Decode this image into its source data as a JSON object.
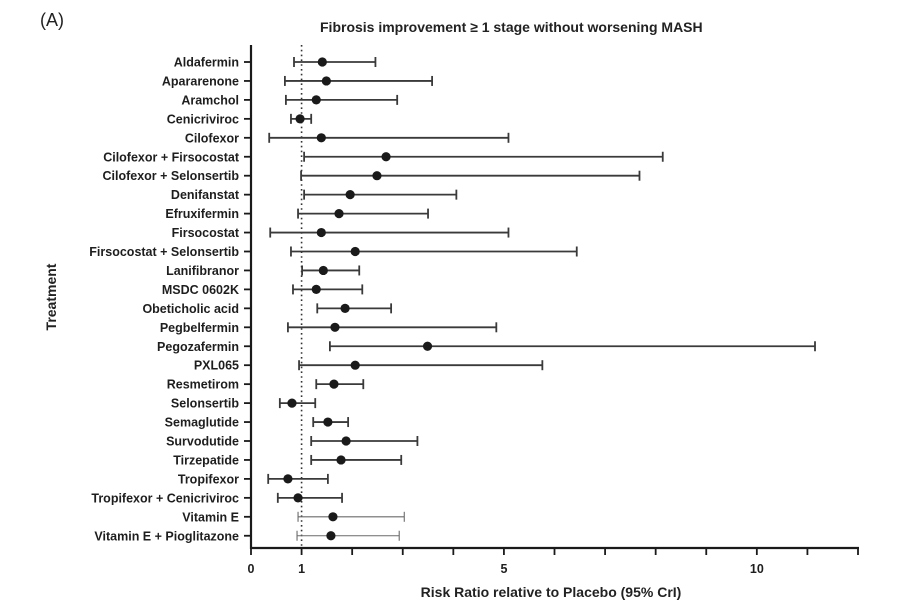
{
  "panel_label": "(A)",
  "chart_data": {
    "type": "forest",
    "title": "Fibrosis improvement ≥ 1 stage without worsening MASH",
    "xlabel": "Risk Ratio relative to Placebo (95% CrI)",
    "ylabel": "Treatment",
    "xlim": [
      0,
      12
    ],
    "xticks": [
      0,
      1,
      2,
      3,
      4,
      5,
      6,
      7,
      8,
      9,
      10,
      11,
      12
    ],
    "xtick_labels": [
      {
        "value": 0,
        "label": "0"
      },
      {
        "value": 1,
        "label": "1"
      },
      {
        "value": 5,
        "label": "5"
      },
      {
        "value": 10,
        "label": "10"
      }
    ],
    "reference_line": 1,
    "grid": false,
    "series": [
      {
        "treatment": "Aldafermin",
        "estimate": 1.41,
        "lower": 0.85,
        "upper": 2.46
      },
      {
        "treatment": "Apararenone",
        "estimate": 1.49,
        "lower": 0.67,
        "upper": 3.58
      },
      {
        "treatment": "Aramchol",
        "estimate": 1.29,
        "lower": 0.69,
        "upper": 2.89
      },
      {
        "treatment": "Cenicriviroc",
        "estimate": 0.97,
        "lower": 0.79,
        "upper": 1.19
      },
      {
        "treatment": "Cilofexor",
        "estimate": 1.39,
        "lower": 0.36,
        "upper": 5.09
      },
      {
        "treatment": "Cilofexor + Firsocostat",
        "estimate": 2.67,
        "lower": 1.05,
        "upper": 8.14
      },
      {
        "treatment": "Cilofexor + Selonsertib",
        "estimate": 2.49,
        "lower": 0.99,
        "upper": 7.68
      },
      {
        "treatment": "Denifanstat",
        "estimate": 1.96,
        "lower": 1.05,
        "upper": 4.06
      },
      {
        "treatment": "Efruxifermin",
        "estimate": 1.74,
        "lower": 0.93,
        "upper": 3.5
      },
      {
        "treatment": "Firsocostat",
        "estimate": 1.39,
        "lower": 0.38,
        "upper": 5.09
      },
      {
        "treatment": "Firsocostat + Selonsertib",
        "estimate": 2.06,
        "lower": 0.79,
        "upper": 6.44
      },
      {
        "treatment": "Lanifibranor",
        "estimate": 1.43,
        "lower": 1.01,
        "upper": 2.14
      },
      {
        "treatment": "MSDC 0602K",
        "estimate": 1.29,
        "lower": 0.83,
        "upper": 2.2
      },
      {
        "treatment": "Obeticholic acid",
        "estimate": 1.86,
        "lower": 1.31,
        "upper": 2.77
      },
      {
        "treatment": "Pegbelfermin",
        "estimate": 1.66,
        "lower": 0.73,
        "upper": 4.85
      },
      {
        "treatment": "Pegozafermin",
        "estimate": 3.49,
        "lower": 1.56,
        "upper": 11.15
      },
      {
        "treatment": "PXL065",
        "estimate": 2.06,
        "lower": 0.95,
        "upper": 5.76
      },
      {
        "treatment": "Resmetirom",
        "estimate": 1.64,
        "lower": 1.29,
        "upper": 2.22
      },
      {
        "treatment": "Selonsertib",
        "estimate": 0.81,
        "lower": 0.57,
        "upper": 1.27
      },
      {
        "treatment": "Semaglutide",
        "estimate": 1.52,
        "lower": 1.23,
        "upper": 1.92
      },
      {
        "treatment": "Survodutide",
        "estimate": 1.88,
        "lower": 1.19,
        "upper": 3.29
      },
      {
        "treatment": "Tirzepatide",
        "estimate": 1.78,
        "lower": 1.19,
        "upper": 2.97
      },
      {
        "treatment": "Tropifexor",
        "estimate": 0.73,
        "lower": 0.34,
        "upper": 1.52
      },
      {
        "treatment": "Tropifexor + Cenicriviroc",
        "estimate": 0.93,
        "lower": 0.53,
        "upper": 1.8
      },
      {
        "treatment": "Vitamin E",
        "estimate": 1.62,
        "lower": 0.93,
        "upper": 3.03,
        "style": "thin"
      },
      {
        "treatment": "Vitamin E + Pioglitazone",
        "estimate": 1.58,
        "lower": 0.91,
        "upper": 2.93,
        "style": "thin"
      }
    ],
    "colors": {
      "marker": "#1a1a1a",
      "whisker": "#3a3a3a",
      "whisker_thin": "#6a6a6a",
      "axis": "#1a1a1a"
    }
  }
}
